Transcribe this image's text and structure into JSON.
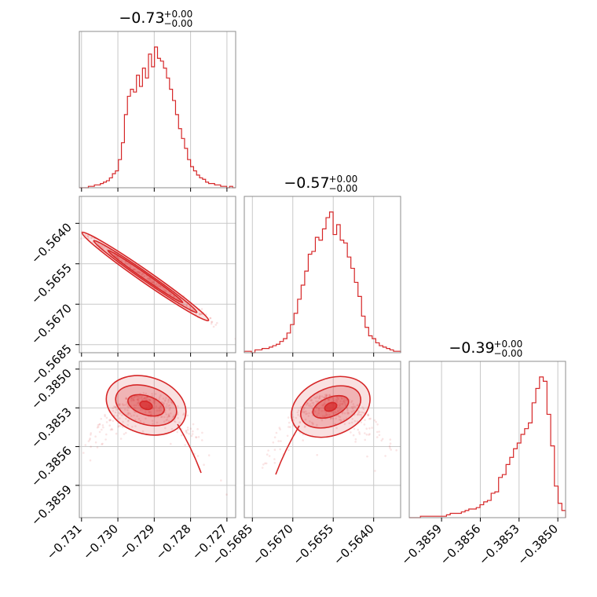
{
  "figure": {
    "titles": [
      {
        "main": "−0.73",
        "sup": "+0.00",
        "sub": "−0.00"
      },
      {
        "main": "−0.57",
        "sup": "+0.00",
        "sub": "−0.00"
      },
      {
        "main": "−0.39",
        "sup": "+0.00",
        "sub": "−0.00"
      }
    ]
  },
  "chart_data": {
    "type": "corner",
    "color": "#d62728",
    "parameters": [
      {
        "range": [
          -0.73106,
          -0.72676
        ],
        "ticks": [
          -0.731,
          -0.73,
          -0.729,
          -0.728,
          -0.727
        ],
        "tick_labels": [
          "−0.731",
          "−0.730",
          "−0.729",
          "−0.728",
          "−0.727"
        ],
        "histogram": [
          0,
          0,
          0,
          1,
          1,
          2,
          2,
          3,
          4,
          5,
          7,
          10,
          12,
          20,
          32,
          52,
          65,
          70,
          68,
          80,
          72,
          85,
          78,
          95,
          86,
          100,
          92,
          90,
          85,
          78,
          70,
          62,
          52,
          42,
          35,
          28,
          20,
          15,
          12,
          9,
          7,
          6,
          4,
          3,
          3,
          2,
          2,
          1,
          1,
          0,
          1,
          0
        ]
      },
      {
        "range": [
          -0.5688,
          -0.563
        ],
        "ticks": [
          -0.5685,
          -0.567,
          -0.5655,
          -0.564
        ],
        "tick_labels": [
          "−0.5685",
          "−0.5670",
          "−0.5655",
          "−0.5640"
        ],
        "histogram": [
          1,
          1,
          0,
          2,
          2,
          3,
          3,
          4,
          5,
          6,
          8,
          10,
          14,
          20,
          28,
          38,
          48,
          58,
          70,
          72,
          82,
          80,
          88,
          96,
          100,
          84,
          91,
          80,
          78,
          68,
          60,
          50,
          40,
          26,
          18,
          12,
          10,
          7,
          5,
          4,
          3,
          2,
          1,
          1
        ]
      },
      {
        "range": [
          -0.38615,
          -0.38494
        ],
        "ticks": [
          -0.3859,
          -0.3856,
          -0.3853,
          -0.385
        ],
        "tick_labels": [
          "−0.3859",
          "−0.3856",
          "−0.3853",
          "−0.3850"
        ],
        "histogram": [
          0,
          0,
          0,
          1,
          1,
          1,
          1,
          1,
          1,
          1,
          2,
          3,
          3,
          3,
          4,
          5,
          6,
          6,
          7,
          9,
          11,
          12,
          17,
          18,
          28,
          30,
          37,
          42,
          48,
          52,
          58,
          62,
          66,
          80,
          90,
          98,
          95,
          72,
          50,
          22,
          10,
          5
        ]
      }
    ],
    "pairs": [
      {
        "x": 0,
        "y": 1
      },
      {
        "x": 0,
        "y": 2
      },
      {
        "x": 1,
        "y": 2
      }
    ]
  }
}
